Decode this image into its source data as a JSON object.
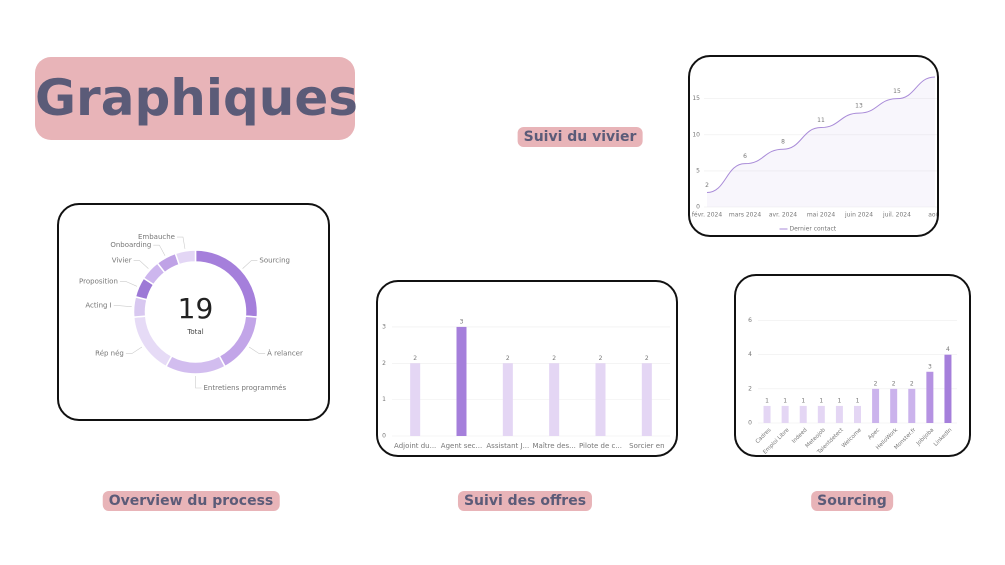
{
  "heading": "Graphiques",
  "chart_data": [
    {
      "type": "pie",
      "title": "Overview du process",
      "donut": true,
      "total": 19,
      "total_label": "Total",
      "categories": [
        "Sourcing",
        "À relancer",
        "Entretiens programmés",
        "Rép nég",
        "Acting I",
        "Proposition",
        "Vivier",
        "Onboarding",
        "Embauche"
      ],
      "values": [
        5,
        3,
        3,
        3,
        1,
        1,
        1,
        1,
        1
      ],
      "colors": [
        "#a57fdb",
        "#c2a5e8",
        "#d2bdef",
        "#e6dbf6",
        "#d8c8f0",
        "#9d79d6",
        "#cdb6ee",
        "#bfa2e6",
        "#e3d6f5"
      ]
    },
    {
      "type": "line",
      "title": "Suivi du vivier",
      "categories": [
        "févr. 2024",
        "mars 2024",
        "avr. 2024",
        "mai 2024",
        "juin 2024",
        "juil. 2024",
        "août"
      ],
      "series": [
        {
          "name": "Dernier contact",
          "color": "#a98bd8",
          "values": [
            2,
            6,
            8,
            11,
            13,
            15,
            18
          ]
        }
      ],
      "ylim": [
        0,
        18
      ],
      "yticks": [
        0,
        5,
        10,
        15
      ],
      "grid": true
    },
    {
      "type": "bar",
      "title": "Suivi des offres",
      "categories": [
        "Adjoint du...",
        "Agent sec...",
        "Assistant J...",
        "Maître des...",
        "Pilote de c...",
        "Sorcier en"
      ],
      "values": [
        2,
        3,
        2,
        2,
        2,
        2
      ],
      "colors": [
        "#e4d6f4",
        "#a57fdb",
        "#e4d6f4",
        "#e4d6f4",
        "#e4d6f4",
        "#e4d6f4"
      ],
      "ylim": [
        0,
        3.3
      ],
      "yticks": [
        0,
        1,
        2,
        3
      ],
      "grid": true
    },
    {
      "type": "bar",
      "title": "Sourcing",
      "rotate_labels": true,
      "categories": [
        "Cadres",
        "Emploi Libre",
        "Indeed",
        "Meteojob",
        "Talentdetect",
        "Welcome",
        "Apec",
        "HelloWork",
        "Monster.fr",
        "Jobijoba",
        "LinkedIn"
      ],
      "values": [
        1,
        1,
        1,
        1,
        1,
        1,
        2,
        2,
        2,
        3,
        4
      ],
      "colors": [
        "#e4d6f4",
        "#e4d6f4",
        "#e4d6f4",
        "#e4d6f4",
        "#e4d6f4",
        "#e4d6f4",
        "#cbb3ec",
        "#cbb3ec",
        "#cbb3ec",
        "#b592e2",
        "#a57fdb"
      ],
      "ylim": [
        0,
        6.5
      ],
      "yticks": [
        0,
        2,
        4,
        6
      ],
      "grid": true
    }
  ]
}
